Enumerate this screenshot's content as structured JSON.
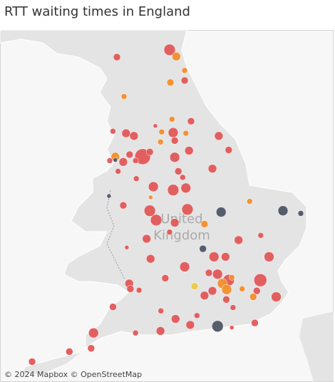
{
  "title": "RTT waiting times in England",
  "map": {
    "region_label": [
      "United",
      "Kingdom"
    ],
    "attribution": "© 2024 Mapbox © OpenStreetMap",
    "points": [
      {
        "lon": -1.56,
        "lat": 54.97,
        "size": 8,
        "color": "#e15759"
      },
      {
        "lon": -1.39,
        "lat": 54.87,
        "size": 6,
        "color": "#f28e2b"
      },
      {
        "lon": -2.89,
        "lat": 54.86,
        "size": 5,
        "color": "#e15759"
      },
      {
        "lon": -1.18,
        "lat": 54.66,
        "size": 4,
        "color": "#f28e2b"
      },
      {
        "lon": -1.54,
        "lat": 54.48,
        "size": 5,
        "color": "#f28e2b"
      },
      {
        "lon": -1.18,
        "lat": 54.51,
        "size": 5,
        "color": "#e15759"
      },
      {
        "lon": -2.71,
        "lat": 54.27,
        "size": 4,
        "color": "#f28e2b"
      },
      {
        "lon": -1.5,
        "lat": 53.93,
        "size": 4,
        "color": "#f28e2b"
      },
      {
        "lon": -1.02,
        "lat": 53.9,
        "size": 5,
        "color": "#e15759"
      },
      {
        "lon": -2.99,
        "lat": 53.75,
        "size": 4,
        "color": "#e15759"
      },
      {
        "lon": -2.66,
        "lat": 53.72,
        "size": 6,
        "color": "#e15759"
      },
      {
        "lon": -2.46,
        "lat": 53.68,
        "size": 6,
        "color": "#e15759"
      },
      {
        "lon": -1.92,
        "lat": 53.83,
        "size": 3,
        "color": "#e15759"
      },
      {
        "lon": -1.76,
        "lat": 53.74,
        "size": 4,
        "color": "#f28e2b"
      },
      {
        "lon": -1.47,
        "lat": 53.73,
        "size": 7,
        "color": "#e15759"
      },
      {
        "lon": -1.15,
        "lat": 53.72,
        "size": 4,
        "color": "#f28e2b"
      },
      {
        "lon": -1.79,
        "lat": 53.59,
        "size": 4,
        "color": "#f28e2b"
      },
      {
        "lon": -1.43,
        "lat": 53.61,
        "size": 5,
        "color": "#e15759"
      },
      {
        "lon": -0.32,
        "lat": 53.68,
        "size": 6,
        "color": "#e15759"
      },
      {
        "lon": -2.93,
        "lat": 53.37,
        "size": 6,
        "color": "#f28e2b"
      },
      {
        "lon": -2.73,
        "lat": 53.29,
        "size": 6,
        "color": "#e15759"
      },
      {
        "lon": -2.57,
        "lat": 53.4,
        "size": 5,
        "color": "#e15759"
      },
      {
        "lon": -2.24,
        "lat": 53.37,
        "size": 11,
        "color": "#e15759"
      },
      {
        "lon": -2.06,
        "lat": 53.44,
        "size": 5,
        "color": "#e15759"
      },
      {
        "lon": -1.43,
        "lat": 53.36,
        "size": 7,
        "color": "#e15759"
      },
      {
        "lon": -1.07,
        "lat": 53.46,
        "size": 6,
        "color": "#e15759"
      },
      {
        "lon": -0.07,
        "lat": 53.47,
        "size": 5,
        "color": "#e15759"
      },
      {
        "lon": -3.07,
        "lat": 53.31,
        "size": 4,
        "color": "#e15759"
      },
      {
        "lon": -2.93,
        "lat": 53.32,
        "size": 3,
        "color": "#4e5566"
      },
      {
        "lon": -2.42,
        "lat": 53.31,
        "size": 4,
        "color": "#e15759"
      },
      {
        "lon": -2.86,
        "lat": 53.15,
        "size": 4,
        "color": "#e15759"
      },
      {
        "lon": -1.34,
        "lat": 53.15,
        "size": 5,
        "color": "#e15759"
      },
      {
        "lon": -0.48,
        "lat": 53.19,
        "size": 6,
        "color": "#e15759"
      },
      {
        "lon": -2.4,
        "lat": 53.04,
        "size": 4,
        "color": "#e15759"
      },
      {
        "lon": -1.23,
        "lat": 53.06,
        "size": 4,
        "color": "#e15759"
      },
      {
        "lon": -1.97,
        "lat": 52.92,
        "size": 7,
        "color": "#e15759"
      },
      {
        "lon": -1.47,
        "lat": 52.87,
        "size": 8,
        "color": "#e15759"
      },
      {
        "lon": -1.15,
        "lat": 52.9,
        "size": 7,
        "color": "#e15759"
      },
      {
        "lon": -3.09,
        "lat": 52.78,
        "size": 3,
        "color": "#4e5566"
      },
      {
        "lon": -2.04,
        "lat": 52.76,
        "size": 3,
        "color": "#f28e2b"
      },
      {
        "lon": 0.46,
        "lat": 52.7,
        "size": 4,
        "color": "#f28e2b"
      },
      {
        "lon": -2.73,
        "lat": 52.64,
        "size": 5,
        "color": "#e15759"
      },
      {
        "lon": -2.06,
        "lat": 52.56,
        "size": 8,
        "color": "#e15759"
      },
      {
        "lon": -1.9,
        "lat": 52.42,
        "size": 8,
        "color": "#e15759"
      },
      {
        "lon": -1.11,
        "lat": 52.58,
        "size": 8,
        "color": "#e15759"
      },
      {
        "lon": -0.26,
        "lat": 52.54,
        "size": 7,
        "color": "#4e5566"
      },
      {
        "lon": 1.3,
        "lat": 52.56,
        "size": 7,
        "color": "#4e5566"
      },
      {
        "lon": 1.75,
        "lat": 52.52,
        "size": 4,
        "color": "#4e5566"
      },
      {
        "lon": -1.43,
        "lat": 52.38,
        "size": 6,
        "color": "#e15759"
      },
      {
        "lon": -0.68,
        "lat": 52.36,
        "size": 5,
        "color": "#f28e2b"
      },
      {
        "lon": -1.56,
        "lat": 52.24,
        "size": 4,
        "color": "#e15759"
      },
      {
        "lon": -2.14,
        "lat": 52.14,
        "size": 6,
        "color": "#e15759"
      },
      {
        "lon": -0.72,
        "lat": 51.99,
        "size": 5,
        "color": "#4e5566"
      },
      {
        "lon": 0.18,
        "lat": 52.12,
        "size": 6,
        "color": "#e15759"
      },
      {
        "lon": 0.74,
        "lat": 52.19,
        "size": 4,
        "color": "#e15759"
      },
      {
        "lon": -2.64,
        "lat": 52.01,
        "size": 3,
        "color": "#e15759"
      },
      {
        "lon": -2.04,
        "lat": 51.84,
        "size": 6,
        "color": "#e15759"
      },
      {
        "lon": -0.44,
        "lat": 51.87,
        "size": 7,
        "color": "#e15759"
      },
      {
        "lon": -0.15,
        "lat": 51.87,
        "size": 6,
        "color": "#e15759"
      },
      {
        "lon": 0.95,
        "lat": 51.87,
        "size": 7,
        "color": "#e15759"
      },
      {
        "lon": -1.18,
        "lat": 51.72,
        "size": 7,
        "color": "#e15759"
      },
      {
        "lon": -0.57,
        "lat": 51.63,
        "size": 5,
        "color": "#e15759"
      },
      {
        "lon": -0.35,
        "lat": 51.61,
        "size": 7,
        "color": "#e15759"
      },
      {
        "lon": -0.07,
        "lat": 51.52,
        "size": 8,
        "color": "#e15759"
      },
      {
        "lon": -0.23,
        "lat": 51.47,
        "size": 7,
        "color": "#f28e2b"
      },
      {
        "lon": 0.01,
        "lat": 51.56,
        "size": 4,
        "color": "#f28e2b"
      },
      {
        "lon": -0.12,
        "lat": 51.38,
        "size": 7,
        "color": "#f28e2b"
      },
      {
        "lon": -1.67,
        "lat": 51.55,
        "size": 5,
        "color": "#e15759"
      },
      {
        "lon": -2.58,
        "lat": 51.47,
        "size": 6,
        "color": "#e15759"
      },
      {
        "lon": -2.55,
        "lat": 51.39,
        "size": 5,
        "color": "#e15759"
      },
      {
        "lon": -2.33,
        "lat": 51.37,
        "size": 4,
        "color": "#e15759"
      },
      {
        "lon": 0.73,
        "lat": 51.52,
        "size": 9,
        "color": "#e15759"
      },
      {
        "lon": 0.27,
        "lat": 51.39,
        "size": 4,
        "color": "#f28e2b"
      },
      {
        "lon": -0.93,
        "lat": 51.43,
        "size": 5,
        "color": "#edc948"
      },
      {
        "lon": -0.48,
        "lat": 51.36,
        "size": 6,
        "color": "#e15759"
      },
      {
        "lon": -0.68,
        "lat": 51.29,
        "size": 6,
        "color": "#e15759"
      },
      {
        "lon": 0.64,
        "lat": 51.36,
        "size": 5,
        "color": "#e15759"
      },
      {
        "lon": 0.55,
        "lat": 51.27,
        "size": 5,
        "color": "#f28e2b"
      },
      {
        "lon": 1.13,
        "lat": 51.27,
        "size": 7,
        "color": "#e15759"
      },
      {
        "lon": -0.13,
        "lat": 51.23,
        "size": 5,
        "color": "#e15759"
      },
      {
        "lon": -1.78,
        "lat": 51.06,
        "size": 4,
        "color": "#e15759"
      },
      {
        "lon": -2.99,
        "lat": 51.12,
        "size": 5,
        "color": "#e15759"
      },
      {
        "lon": -1.41,
        "lat": 50.94,
        "size": 6,
        "color": "#e15759"
      },
      {
        "lon": -0.87,
        "lat": 50.99,
        "size": 4,
        "color": "#e15759"
      },
      {
        "lon": 0.04,
        "lat": 51.11,
        "size": 4,
        "color": "#e15759"
      },
      {
        "lon": -1.79,
        "lat": 50.76,
        "size": 6,
        "color": "#e15759"
      },
      {
        "lon": -1.04,
        "lat": 50.85,
        "size": 6,
        "color": "#e15759"
      },
      {
        "lon": -0.35,
        "lat": 50.83,
        "size": 8,
        "color": "#4e5566"
      },
      {
        "lon": 0.59,
        "lat": 50.88,
        "size": 5,
        "color": "#e15759"
      },
      {
        "lon": -3.48,
        "lat": 50.73,
        "size": 7,
        "color": "#e15759"
      },
      {
        "lon": -2.42,
        "lat": 50.73,
        "size": 4,
        "color": "#e15759"
      },
      {
        "lon": -3.54,
        "lat": 50.5,
        "size": 5,
        "color": "#e15759"
      },
      {
        "lon": -4.09,
        "lat": 50.45,
        "size": 5,
        "color": "#e15759"
      },
      {
        "lon": -5.03,
        "lat": 50.3,
        "size": 5,
        "color": "#e15759"
      },
      {
        "lon": 0.01,
        "lat": 50.81,
        "size": 3,
        "color": "#e15759"
      }
    ]
  }
}
